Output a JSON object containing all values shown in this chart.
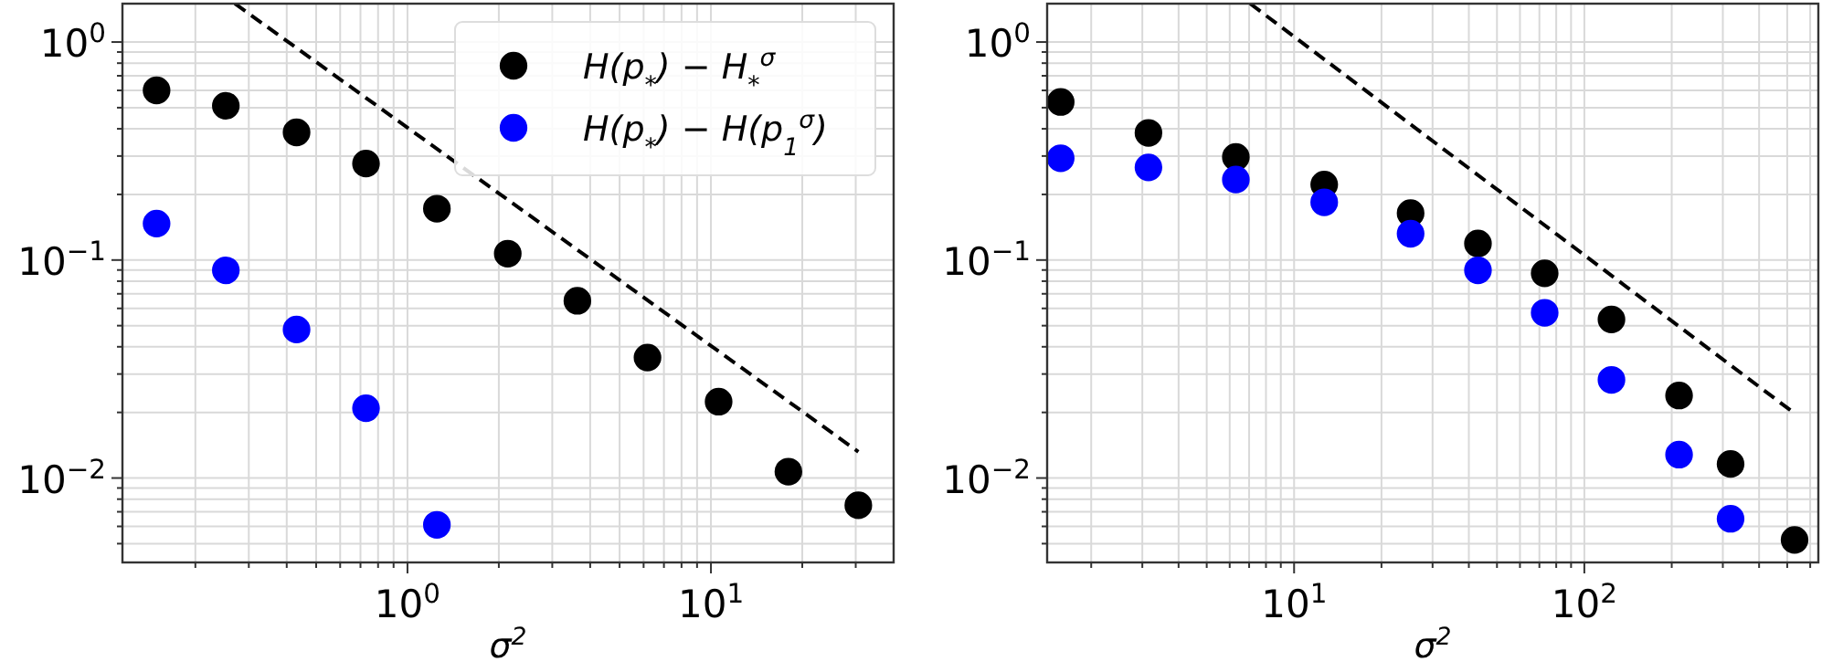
{
  "chart_data": [
    {
      "type": "scatter",
      "xlabel": "σ$^{2}$",
      "log": "xy",
      "grid": true,
      "legend": "top right",
      "marker": "circle",
      "xlim": [
        0.115,
        40
      ],
      "ylim": [
        0.0041,
        1.5
      ],
      "xticks": [
        {
          "value": 0.2,
          "label": null
        },
        {
          "value": 0.3,
          "label": null
        },
        {
          "value": 0.4,
          "label": null
        },
        {
          "value": 0.5,
          "label": null
        },
        {
          "value": 0.6,
          "label": null
        },
        {
          "value": 0.7,
          "label": null
        },
        {
          "value": 0.8,
          "label": null
        },
        {
          "value": 0.9,
          "label": null
        },
        {
          "value": 1,
          "label": "10$^{0}$"
        },
        {
          "value": 2,
          "label": null
        },
        {
          "value": 3,
          "label": null
        },
        {
          "value": 4,
          "label": null
        },
        {
          "value": 5,
          "label": null
        },
        {
          "value": 6,
          "label": null
        },
        {
          "value": 7,
          "label": null
        },
        {
          "value": 8,
          "label": null
        },
        {
          "value": 9,
          "label": null
        },
        {
          "value": 10,
          "label": "10$^{1}$"
        },
        {
          "value": 20,
          "label": null
        },
        {
          "value": 30,
          "label": null
        }
      ],
      "yticks": [
        {
          "value": 0.005,
          "label": null
        },
        {
          "value": 0.006,
          "label": null
        },
        {
          "value": 0.007,
          "label": null
        },
        {
          "value": 0.008,
          "label": null
        },
        {
          "value": 0.009,
          "label": null
        },
        {
          "value": 0.01,
          "label": "10$^{−2}$"
        },
        {
          "value": 0.02,
          "label": null
        },
        {
          "value": 0.03,
          "label": null
        },
        {
          "value": 0.04,
          "label": null
        },
        {
          "value": 0.05,
          "label": null
        },
        {
          "value": 0.06,
          "label": null
        },
        {
          "value": 0.07,
          "label": null
        },
        {
          "value": 0.08,
          "label": null
        },
        {
          "value": 0.09,
          "label": null
        },
        {
          "value": 0.1,
          "label": "10$^{−1}$"
        },
        {
          "value": 0.2,
          "label": null
        },
        {
          "value": 0.3,
          "label": null
        },
        {
          "value": 0.4,
          "label": null
        },
        {
          "value": 0.5,
          "label": null
        },
        {
          "value": 0.6,
          "label": null
        },
        {
          "value": 0.7,
          "label": null
        },
        {
          "value": 0.8,
          "label": null
        },
        {
          "value": 0.9,
          "label": null
        },
        {
          "value": 1,
          "label": "10$^{0}$"
        }
      ],
      "series": [
        {
          "type": "line",
          "color": "#000000",
          "line_style": "dashed",
          "marker": "none",
          "x": [
            0.27,
            30.6
          ],
          "values": [
            1.5,
            0.0132
          ]
        },
        {
          "name": "H(p$_{*}$) − H$_{*}$$^{σ}$",
          "color": "#000000",
          "x": [
            0.149,
            0.252,
            0.431,
            0.73,
            1.25,
            2.14,
            3.63,
            6.18,
            10.6,
            18.0,
            30.6
          ],
          "values": [
            0.6,
            0.51,
            0.385,
            0.277,
            0.172,
            0.107,
            0.065,
            0.0357,
            0.0224,
            0.0107,
            0.0075
          ]
        },
        {
          "name": "H(p$_{*}$) − H(p$_{1}$$^{σ}$)",
          "color": "#0000ff",
          "x": [
            0.149,
            0.252,
            0.431,
            0.73,
            1.25
          ],
          "values": [
            0.147,
            0.0897,
            0.048,
            0.0209,
            0.0061
          ]
        }
      ]
    },
    {
      "type": "scatter",
      "xlabel": "σ$^{2}$",
      "log": "xy",
      "grid": true,
      "marker": "circle",
      "xlim": [
        1.41,
        640
      ],
      "ylim": [
        0.0041,
        1.5
      ],
      "xticks": [
        {
          "value": 2,
          "label": null
        },
        {
          "value": 3,
          "label": null
        },
        {
          "value": 4,
          "label": null
        },
        {
          "value": 5,
          "label": null
        },
        {
          "value": 6,
          "label": null
        },
        {
          "value": 7,
          "label": null
        },
        {
          "value": 8,
          "label": null
        },
        {
          "value": 9,
          "label": null
        },
        {
          "value": 10,
          "label": "10$^{1}$"
        },
        {
          "value": 20,
          "label": null
        },
        {
          "value": 30,
          "label": null
        },
        {
          "value": 40,
          "label": null
        },
        {
          "value": 50,
          "label": null
        },
        {
          "value": 60,
          "label": null
        },
        {
          "value": 70,
          "label": null
        },
        {
          "value": 80,
          "label": null
        },
        {
          "value": 90,
          "label": null
        },
        {
          "value": 100,
          "label": "10$^{2}$"
        },
        {
          "value": 200,
          "label": null
        },
        {
          "value": 300,
          "label": null
        },
        {
          "value": 400,
          "label": null
        },
        {
          "value": 500,
          "label": null
        },
        {
          "value": 600,
          "label": null
        }
      ],
      "yticks": [
        {
          "value": 0.005,
          "label": null
        },
        {
          "value": 0.006,
          "label": null
        },
        {
          "value": 0.007,
          "label": null
        },
        {
          "value": 0.008,
          "label": null
        },
        {
          "value": 0.009,
          "label": null
        },
        {
          "value": 0.01,
          "label": "10$^{−2}$"
        },
        {
          "value": 0.02,
          "label": null
        },
        {
          "value": 0.03,
          "label": null
        },
        {
          "value": 0.04,
          "label": null
        },
        {
          "value": 0.05,
          "label": null
        },
        {
          "value": 0.06,
          "label": null
        },
        {
          "value": 0.07,
          "label": null
        },
        {
          "value": 0.08,
          "label": null
        },
        {
          "value": 0.09,
          "label": null
        },
        {
          "value": 0.1,
          "label": "10$^{−1}$"
        },
        {
          "value": 0.2,
          "label": null
        },
        {
          "value": 0.3,
          "label": null
        },
        {
          "value": 0.4,
          "label": null
        },
        {
          "value": 0.5,
          "label": null
        },
        {
          "value": 0.6,
          "label": null
        },
        {
          "value": 0.7,
          "label": null
        },
        {
          "value": 0.8,
          "label": null
        },
        {
          "value": 0.9,
          "label": null
        },
        {
          "value": 1,
          "label": "10$^{0}$"
        }
      ],
      "series": [
        {
          "type": "line",
          "color": "#000000",
          "line_style": "dashed",
          "marker": "none",
          "x": [
            7.06,
            530
          ],
          "values": [
            1.5,
            0.0198
          ]
        },
        {
          "color": "#000000",
          "x": [
            1.57,
            3.15,
            6.3,
            12.7,
            25.2,
            43,
            73,
            124,
            212,
            319,
            530
          ],
          "values": [
            0.531,
            0.383,
            0.297,
            0.222,
            0.164,
            0.119,
            0.0869,
            0.0534,
            0.0239,
            0.0116,
            0.0052
          ]
        },
        {
          "color": "#0000ff",
          "x": [
            1.57,
            3.15,
            6.3,
            12.7,
            25.2,
            43,
            73,
            124,
            212,
            319
          ],
          "values": [
            0.293,
            0.266,
            0.234,
            0.184,
            0.132,
            0.0897,
            0.0573,
            0.0282,
            0.0128,
            0.0065
          ]
        }
      ]
    }
  ]
}
